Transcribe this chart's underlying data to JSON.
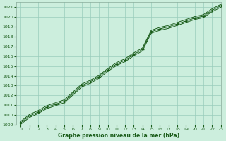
{
  "xlabel": "Graphe pression niveau de la mer (hPa)",
  "ylim": [
    1009,
    1021.5
  ],
  "xlim": [
    -0.5,
    23
  ],
  "yticks": [
    1009,
    1010,
    1011,
    1012,
    1013,
    1014,
    1015,
    1016,
    1017,
    1018,
    1019,
    1020,
    1021
  ],
  "xticks": [
    0,
    1,
    2,
    3,
    4,
    5,
    6,
    7,
    8,
    9,
    10,
    11,
    12,
    13,
    14,
    15,
    16,
    17,
    18,
    19,
    20,
    21,
    22,
    23
  ],
  "background_color": "#cceedd",
  "grid_color": "#99ccbb",
  "line_color": "#1a5c1a",
  "line_mid": [
    1009.2,
    1009.9,
    1010.3,
    1010.8,
    1011.1,
    1011.4,
    1012.2,
    1013.0,
    1013.4,
    1013.9,
    1014.6,
    1015.2,
    1015.6,
    1016.2,
    1016.7,
    1018.5,
    1018.8,
    1019.0,
    1019.3,
    1019.6,
    1019.9,
    1020.1,
    1020.7,
    1021.15
  ],
  "line_lo": [
    1009.05,
    1009.75,
    1010.15,
    1010.65,
    1010.95,
    1011.25,
    1012.05,
    1012.85,
    1013.25,
    1013.75,
    1014.45,
    1015.05,
    1015.45,
    1016.05,
    1016.55,
    1018.35,
    1018.65,
    1018.85,
    1019.15,
    1019.45,
    1019.75,
    1019.95,
    1020.55,
    1021.0
  ],
  "line_hi": [
    1009.35,
    1010.05,
    1010.45,
    1010.95,
    1011.25,
    1011.55,
    1012.35,
    1013.15,
    1013.55,
    1014.05,
    1014.75,
    1015.35,
    1015.75,
    1016.35,
    1016.85,
    1018.65,
    1018.95,
    1019.15,
    1019.45,
    1019.75,
    1020.05,
    1020.25,
    1020.85,
    1021.3
  ],
  "markers_x": [
    0,
    1,
    2,
    3,
    4,
    5,
    6,
    7,
    8,
    9,
    10,
    11,
    12,
    13,
    14,
    15,
    16,
    17,
    18,
    19,
    20,
    21,
    22,
    23
  ]
}
